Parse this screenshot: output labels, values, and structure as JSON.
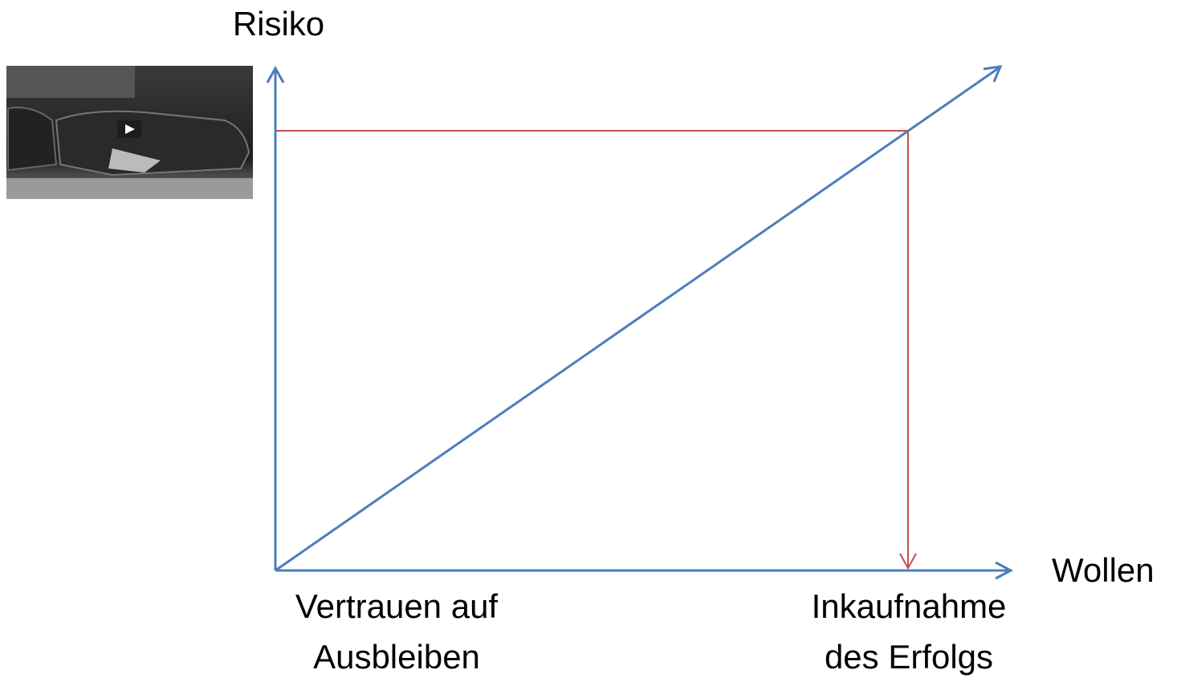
{
  "axes": {
    "y_label": "Risiko",
    "x_label": "Wollen"
  },
  "labels": {
    "left": [
      "Vertrauen auf",
      "Ausbleiben"
    ],
    "right": [
      "Inkaufnahme",
      "des Erfolgs"
    ]
  }
}
